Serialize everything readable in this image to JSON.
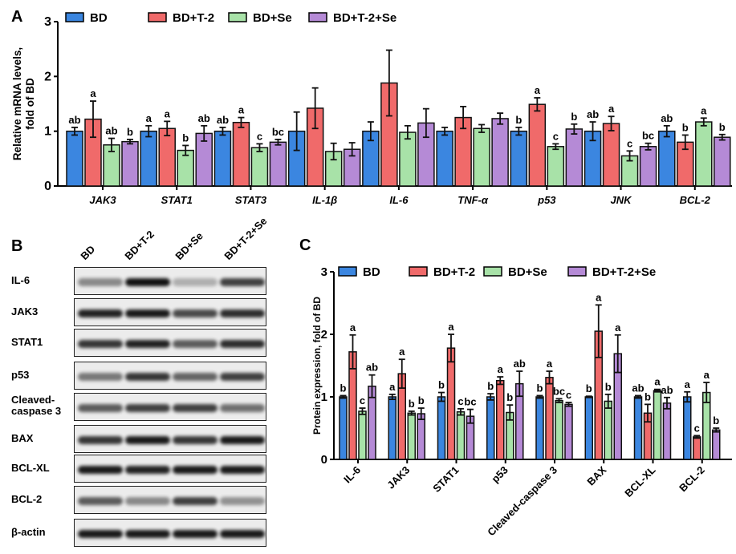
{
  "panels": {
    "a": "A",
    "b": "B",
    "c": "C"
  },
  "colors": {
    "BD": "#3b86e0",
    "BD+T-2": "#f06a6a",
    "BD+Se": "#a8e2a8",
    "BD+T-2+Se": "#b58ad6"
  },
  "chart_data": [
    {
      "type": "bar",
      "panel": "A",
      "ylabel": "Relative mRNA levels,\nfold of BD",
      "ylabel_lines": [
        "Relative mRNA levels,",
        "fold of BD"
      ],
      "ylim": [
        0,
        3
      ],
      "yticks": [
        "0",
        "1",
        "2",
        "3"
      ],
      "legend": [
        "BD",
        "BD+T-2",
        "BD+Se",
        "BD+T-2+Se"
      ],
      "categories": [
        "JAK3",
        "STAT1",
        "STAT3",
        "IL-1β",
        "IL-6",
        "TNF-α",
        "p53",
        "JNK",
        "BCL-2"
      ],
      "series": [
        {
          "name": "BD",
          "values": [
            1.0,
            1.0,
            1.0,
            1.0,
            1.0,
            1.0,
            1.0,
            1.0,
            1.0
          ],
          "errors": [
            0.07,
            0.1,
            0.07,
            0.35,
            0.17,
            0.07,
            0.07,
            0.17,
            0.1
          ],
          "labels": [
            "ab",
            "a",
            "ab",
            "",
            "",
            "",
            "b",
            "ab",
            "ab"
          ]
        },
        {
          "name": "BD+T-2",
          "values": [
            1.22,
            1.05,
            1.16,
            1.42,
            1.88,
            1.25,
            1.49,
            1.14,
            0.8
          ],
          "errors": [
            0.33,
            0.13,
            0.09,
            0.37,
            0.6,
            0.2,
            0.12,
            0.13,
            0.13
          ],
          "labels": [
            "a",
            "a",
            "a",
            "",
            "",
            "",
            "a",
            "a",
            "b"
          ]
        },
        {
          "name": "BD+Se",
          "values": [
            0.75,
            0.65,
            0.7,
            0.63,
            0.98,
            1.05,
            0.72,
            0.55,
            1.17
          ],
          "errors": [
            0.12,
            0.09,
            0.07,
            0.15,
            0.12,
            0.07,
            0.05,
            0.09,
            0.07
          ],
          "labels": [
            "ab",
            "b",
            "c",
            "",
            "",
            "",
            "c",
            "c",
            "a"
          ]
        },
        {
          "name": "BD+T-2+Se",
          "values": [
            0.81,
            0.96,
            0.8,
            0.67,
            1.15,
            1.23,
            1.04,
            0.72,
            0.89
          ],
          "errors": [
            0.04,
            0.14,
            0.05,
            0.12,
            0.26,
            0.1,
            0.09,
            0.06,
            0.05
          ],
          "labels": [
            "b",
            "ab",
            "bc",
            "",
            "",
            "",
            "b",
            "bc",
            "b"
          ]
        }
      ]
    },
    {
      "type": "bar",
      "panel": "C",
      "ylabel": "Protein expression, fold of BD",
      "ylim": [
        0,
        3
      ],
      "yticks": [
        "0",
        "1",
        "2",
        "3"
      ],
      "legend": [
        "BD",
        "BD+T-2",
        "BD+Se",
        "BD+T-2+Se"
      ],
      "categories": [
        "IL-6",
        "JAK3",
        "STAT1",
        "p53",
        "Cleaved-caspase 3",
        "BAX",
        "BCL-XL",
        "BCL-2"
      ],
      "series": [
        {
          "name": "BD",
          "values": [
            1.0,
            1.0,
            1.0,
            1.0,
            1.0,
            1.0,
            1.0,
            1.0
          ],
          "errors": [
            0.02,
            0.04,
            0.07,
            0.05,
            0.02,
            0.01,
            0.02,
            0.08
          ],
          "labels": [
            "b",
            "a",
            "b",
            "b",
            "b",
            "b",
            "ab",
            "a"
          ]
        },
        {
          "name": "BD+T-2",
          "values": [
            1.72,
            1.37,
            1.78,
            1.26,
            1.31,
            2.05,
            0.74,
            0.36
          ],
          "errors": [
            0.27,
            0.23,
            0.22,
            0.06,
            0.1,
            0.42,
            0.14,
            0.02
          ],
          "labels": [
            "a",
            "a",
            "a",
            "a",
            "a",
            "a",
            "b",
            "c"
          ]
        },
        {
          "name": "BD+Se",
          "values": [
            0.77,
            0.74,
            0.76,
            0.75,
            0.94,
            0.93,
            1.1,
            1.07
          ],
          "errors": [
            0.05,
            0.03,
            0.05,
            0.12,
            0.03,
            0.11,
            0.02,
            0.16
          ],
          "labels": [
            "c",
            "b",
            "c",
            "b",
            "bc",
            "b",
            "a",
            "a"
          ]
        },
        {
          "name": "BD+T-2+Se",
          "values": [
            1.17,
            0.73,
            0.69,
            1.21,
            0.88,
            1.69,
            0.9,
            0.47
          ],
          "errors": [
            0.18,
            0.09,
            0.11,
            0.2,
            0.03,
            0.3,
            0.09,
            0.03
          ],
          "labels": [
            "ab",
            "b",
            "bc",
            "ab",
            "c",
            "a",
            "ab",
            "b"
          ]
        }
      ]
    }
  ],
  "western_blot": {
    "lanes": [
      "BD",
      "BD+T-2",
      "BD+Se",
      "BD+T-2+Se"
    ],
    "rows": [
      {
        "label": "IL-6",
        "intensity": [
          0.35,
          1.0,
          0.15,
          0.75
        ]
      },
      {
        "label": "JAK3",
        "intensity": [
          0.9,
          0.95,
          0.7,
          0.85
        ]
      },
      {
        "label": "STAT1",
        "intensity": [
          0.8,
          0.9,
          0.6,
          0.85
        ]
      },
      {
        "label": "p53",
        "intensity": [
          0.45,
          0.8,
          0.55,
          0.75
        ]
      },
      {
        "label": "Cleaved-\ncaspase 3",
        "label_lines": [
          "Cleaved-",
          "caspase 3"
        ],
        "intensity": [
          0.6,
          0.75,
          0.75,
          0.5
        ]
      },
      {
        "label": "BAX",
        "intensity": [
          0.8,
          0.95,
          0.8,
          0.95
        ]
      },
      {
        "label": "BCL-XL",
        "intensity": [
          0.95,
          0.9,
          0.95,
          0.95
        ]
      },
      {
        "label": "BCL-2",
        "intensity": [
          0.6,
          0.35,
          0.75,
          0.3
        ]
      },
      {
        "label": "β-actin",
        "intensity": [
          0.95,
          0.95,
          0.95,
          0.95
        ]
      }
    ]
  }
}
